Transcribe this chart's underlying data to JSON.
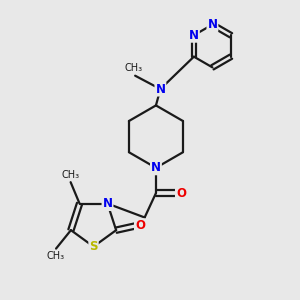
{
  "bg_color": "#e8e8e8",
  "bond_color": "#1a1a1a",
  "N_color": "#0000ee",
  "O_color": "#ee0000",
  "S_color": "#b8b800",
  "line_width": 1.6,
  "font_size": 8.5,
  "figsize": [
    3.0,
    3.0
  ],
  "dpi": 100,
  "xlim": [
    0,
    10
  ],
  "ylim": [
    0,
    10
  ]
}
